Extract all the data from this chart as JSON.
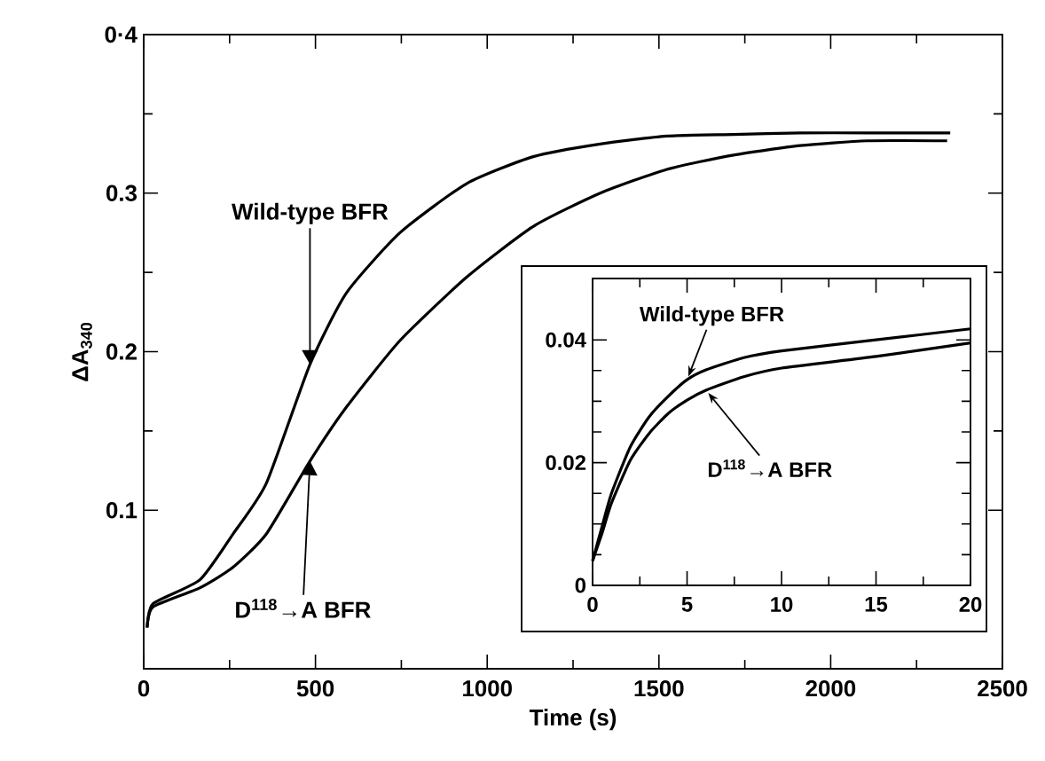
{
  "chart_data": [
    {
      "type": "line",
      "xlabel": "Time (s)",
      "ylabel": "ΔA$_{340}$",
      "xlim": [
        0,
        2500
      ],
      "ylim": [
        0,
        0.4
      ],
      "xticks": [
        0,
        500,
        1000,
        1500,
        2000,
        2500
      ],
      "yticks": [
        0.1,
        0.2,
        0.3,
        {
          "value": 0.4,
          "label": "0·4"
        }
      ],
      "marker": "none",
      "line_style": "solid",
      "series": [
        {
          "color": "#000000",
          "x": [
            10,
            27,
            163,
            260,
            357,
            484,
            590,
            746,
            940,
            1134,
            1329,
            1523,
            1717,
            1911,
            2106,
            2348
          ],
          "values": [
            0.026,
            0.041,
            0.056,
            0.085,
            0.117,
            0.192,
            0.237,
            0.275,
            0.306,
            0.323,
            0.331,
            0.336,
            0.337,
            0.338,
            0.338,
            0.338
          ]
        },
        {
          "color": "#000000",
          "x": [
            10,
            27,
            163,
            260,
            357,
            484,
            590,
            746,
            940,
            1134,
            1329,
            1523,
            1717,
            1911,
            2106,
            2339
          ],
          "values": [
            0.026,
            0.039,
            0.051,
            0.064,
            0.085,
            0.131,
            0.165,
            0.207,
            0.247,
            0.279,
            0.3,
            0.315,
            0.324,
            0.33,
            0.333,
            0.333
          ]
        }
      ],
      "annotations": [
        {
          "text": "Wild-type BFR",
          "x": 484,
          "y": 0.192
        },
        {
          "text": "D$^{118}$→A BFR",
          "x": 484,
          "y": 0.131
        }
      ]
    },
    {
      "type": "line",
      "xlim": [
        0,
        20
      ],
      "ylim": [
        0,
        0.05
      ],
      "xticks": [
        0,
        5,
        10,
        15,
        20
      ],
      "yticks": [
        0,
        0.02,
        0.04
      ],
      "marker": "none",
      "line_style": "solid",
      "series": [
        {
          "color": "#000000",
          "x": [
            0,
            0.5,
            1,
            2,
            3,
            4,
            5,
            6,
            8,
            10,
            15,
            20
          ],
          "values": [
            0.004,
            0.0096,
            0.015,
            0.0226,
            0.0275,
            0.0308,
            0.0335,
            0.0351,
            0.0371,
            0.0382,
            0.04,
            0.0418
          ]
        },
        {
          "color": "#000000",
          "x": [
            0,
            0.5,
            1,
            2,
            3,
            4,
            5,
            6,
            8,
            10,
            15,
            20
          ],
          "values": [
            0.004,
            0.0085,
            0.0134,
            0.0204,
            0.0248,
            0.028,
            0.0302,
            0.0318,
            0.034,
            0.0354,
            0.0373,
            0.0395
          ]
        }
      ],
      "annotations": [
        {
          "text": "Wild-type BFR",
          "x": 5,
          "y": 0.0335
        },
        {
          "text": "D$^{118}$→A BFR",
          "x": 6,
          "y": 0.0318
        }
      ]
    }
  ]
}
